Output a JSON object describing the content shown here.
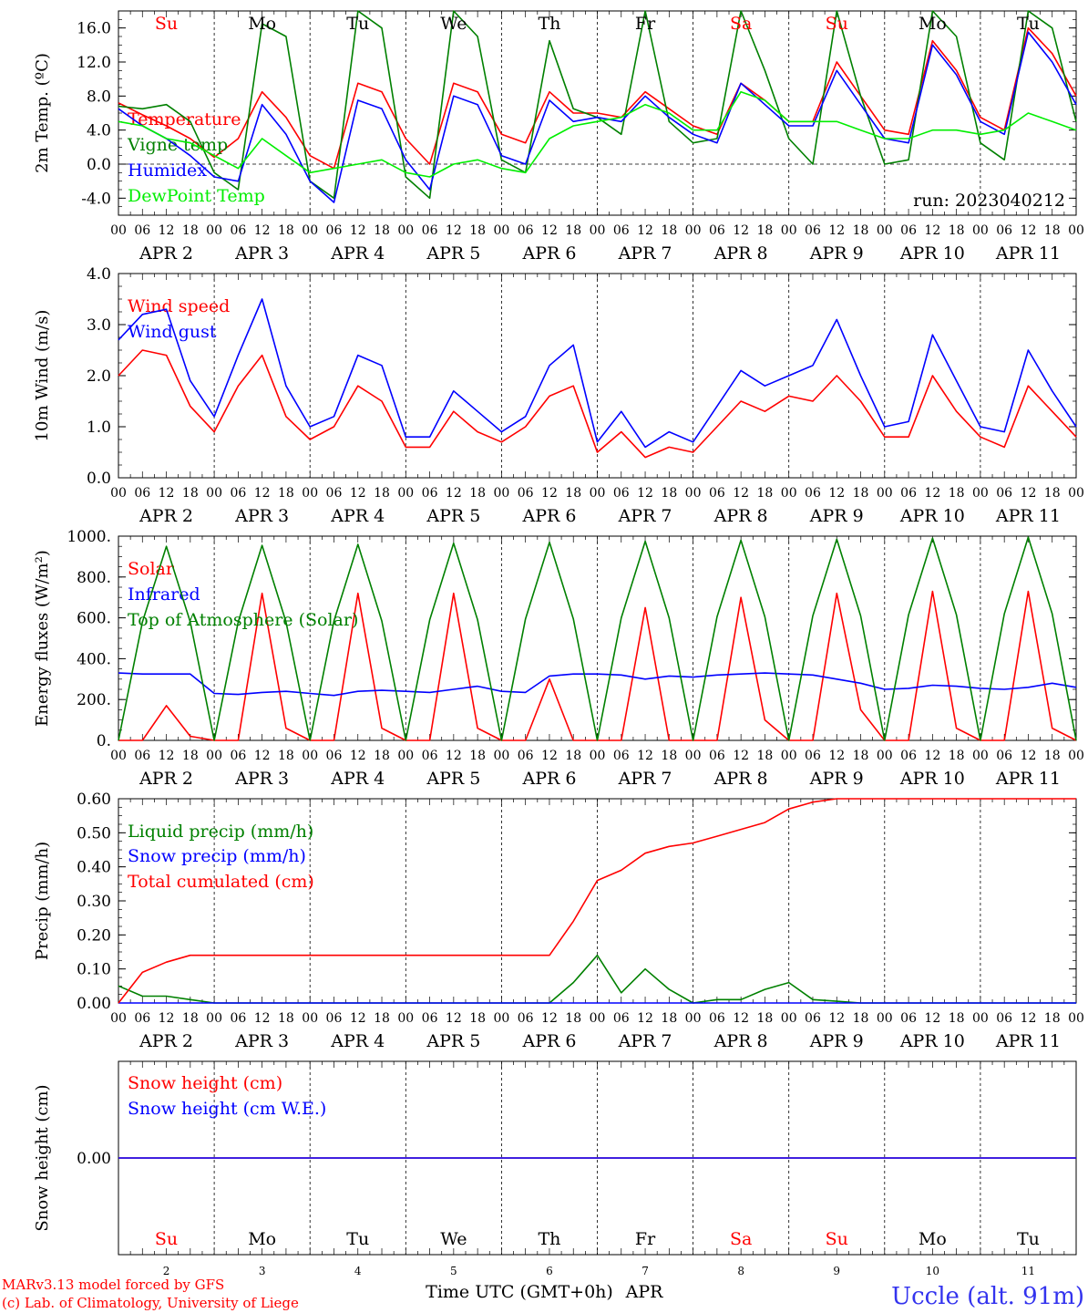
{
  "chart_data": [
    {
      "type": "line",
      "ylabel": "2m Temp. (ºC)",
      "ylim": [
        -6,
        18
      ],
      "yticks": [
        -4,
        0,
        4,
        8,
        12,
        16
      ],
      "ytick_labels": [
        "-4.0",
        "0.0",
        "4.0",
        "8.0",
        "12.0",
        "16.0"
      ],
      "zero_line": true,
      "run_label": "run: 2023040212",
      "top_day_labels": [
        "Su",
        "Mo",
        "Tu",
        "We",
        "Th",
        "Fr",
        "Sa",
        "Su",
        "Mo",
        "Tu"
      ],
      "x": [
        0,
        6,
        12,
        18,
        24,
        30,
        36,
        42,
        48,
        54,
        60,
        66,
        72,
        78,
        84,
        90,
        96,
        102,
        108,
        114,
        120,
        126,
        132,
        138,
        144,
        150,
        156,
        162,
        168,
        174,
        180,
        186,
        192,
        198,
        204,
        210,
        216,
        222,
        228,
        234,
        240
      ],
      "series": [
        {
          "name": "Temperature",
          "color": "#ff0000",
          "values": [
            7.2,
            5.8,
            4.5,
            3.0,
            0.8,
            3.0,
            8.5,
            5.5,
            1.0,
            -0.5,
            9.5,
            8.5,
            3.0,
            0.0,
            9.5,
            8.5,
            3.5,
            2.5,
            8.5,
            6.0,
            6.0,
            5.5,
            8.5,
            6.5,
            4.5,
            3.5,
            9.5,
            7.5,
            5.0,
            5.0,
            12.0,
            8.0,
            4.0,
            3.5,
            14.5,
            11.0,
            5.5,
            4.0,
            16.0,
            13.0,
            8.0
          ]
        },
        {
          "name": "Vigne temp",
          "color": "#008000",
          "values": [
            6.8,
            6.5,
            7.0,
            5.0,
            -1.0,
            -3.0,
            16.5,
            15.0,
            -2.0,
            -4.0,
            18.0,
            16.0,
            -1.5,
            -4.0,
            18.0,
            15.0,
            0.5,
            -1.0,
            14.5,
            6.5,
            5.5,
            3.5,
            18.0,
            5.0,
            2.5,
            3.0,
            18.0,
            11.0,
            3.0,
            0.0,
            18.0,
            8.0,
            0.0,
            0.5,
            18.0,
            15.0,
            2.5,
            0.5,
            18.0,
            16.0,
            5.0
          ]
        },
        {
          "name": "Humidex",
          "color": "#0000ff",
          "values": [
            6.5,
            4.5,
            3.0,
            1.0,
            -1.5,
            -2.0,
            7.0,
            3.5,
            -2.0,
            -4.5,
            7.5,
            6.5,
            0.5,
            -3.0,
            8.0,
            7.0,
            1.0,
            0.0,
            7.5,
            5.0,
            5.5,
            5.0,
            8.0,
            5.5,
            3.5,
            2.5,
            9.5,
            7.0,
            4.5,
            4.5,
            11.0,
            7.0,
            3.0,
            2.5,
            14.0,
            10.5,
            5.0,
            3.5,
            15.5,
            12.0,
            7.0
          ]
        },
        {
          "name": "DewPoint Temp",
          "color": "#00ee00",
          "values": [
            5.0,
            4.5,
            3.0,
            2.5,
            1.0,
            -0.5,
            3.0,
            1.0,
            -1.0,
            -0.5,
            0.0,
            0.5,
            -1.0,
            -1.5,
            0.0,
            0.5,
            -0.5,
            -1.0,
            3.0,
            4.5,
            5.0,
            5.5,
            7.0,
            6.0,
            4.0,
            4.0,
            8.5,
            7.5,
            5.0,
            5.0,
            5.0,
            4.0,
            3.0,
            3.0,
            4.0,
            4.0,
            3.5,
            4.0,
            6.0,
            5.0,
            4.0
          ]
        }
      ]
    },
    {
      "type": "line",
      "ylabel": "10m Wind (m/s)",
      "ylim": [
        0,
        4
      ],
      "yticks": [
        0,
        1,
        2,
        3,
        4
      ],
      "ytick_labels": [
        "0.0",
        "1.0",
        "2.0",
        "3.0",
        "4.0"
      ],
      "x": [
        0,
        6,
        12,
        18,
        24,
        30,
        36,
        42,
        48,
        54,
        60,
        66,
        72,
        78,
        84,
        90,
        96,
        102,
        108,
        114,
        120,
        126,
        132,
        138,
        144,
        150,
        156,
        162,
        168,
        174,
        180,
        186,
        192,
        198,
        204,
        210,
        216,
        222,
        228,
        234,
        240
      ],
      "series": [
        {
          "name": "Wind speed",
          "color": "#ff0000",
          "values": [
            2.0,
            2.5,
            2.4,
            1.4,
            0.9,
            1.8,
            2.4,
            1.2,
            0.75,
            1.0,
            1.8,
            1.5,
            0.6,
            0.6,
            1.3,
            0.9,
            0.7,
            1.0,
            1.6,
            1.8,
            0.5,
            0.9,
            0.4,
            0.6,
            0.5,
            1.0,
            1.5,
            1.3,
            1.6,
            1.5,
            2.0,
            1.5,
            0.8,
            0.8,
            2.0,
            1.3,
            0.8,
            0.6,
            1.8,
            1.3,
            0.8
          ]
        },
        {
          "name": "Wind gust",
          "color": "#0000ff",
          "values": [
            2.7,
            3.2,
            3.3,
            1.9,
            1.2,
            2.4,
            3.5,
            1.8,
            1.0,
            1.2,
            2.4,
            2.2,
            0.8,
            0.8,
            1.7,
            1.3,
            0.9,
            1.2,
            2.2,
            2.6,
            0.7,
            1.3,
            0.6,
            0.9,
            0.7,
            1.4,
            2.1,
            1.8,
            2.0,
            2.2,
            3.1,
            2.0,
            1.0,
            1.1,
            2.8,
            1.9,
            1.0,
            0.9,
            2.5,
            1.7,
            1.0
          ]
        }
      ]
    },
    {
      "type": "line",
      "ylabel": "Energy fluxes (W/m²)",
      "ylim": [
        0,
        1000
      ],
      "yticks": [
        0,
        200,
        400,
        600,
        800,
        1000
      ],
      "ytick_labels": [
        "0.",
        "200.",
        "400.",
        "600.",
        "800.",
        "1000."
      ],
      "x": [
        0,
        6,
        12,
        18,
        24,
        30,
        36,
        42,
        48,
        54,
        60,
        66,
        72,
        78,
        84,
        90,
        96,
        102,
        108,
        114,
        120,
        126,
        132,
        138,
        144,
        150,
        156,
        162,
        168,
        174,
        180,
        186,
        192,
        198,
        204,
        210,
        216,
        222,
        228,
        234,
        240
      ],
      "series": [
        {
          "name": "Solar",
          "color": "#ff0000",
          "values": [
            0,
            0,
            170,
            20,
            0,
            0,
            720,
            60,
            0,
            0,
            720,
            60,
            0,
            0,
            720,
            60,
            0,
            0,
            300,
            0,
            0,
            0,
            650,
            0,
            0,
            0,
            700,
            100,
            0,
            0,
            720,
            150,
            0,
            0,
            730,
            60,
            0,
            0,
            730,
            60,
            0
          ]
        },
        {
          "name": "Infrared",
          "color": "#0000ff",
          "values": [
            330,
            325,
            325,
            325,
            230,
            225,
            235,
            240,
            230,
            220,
            240,
            245,
            240,
            235,
            250,
            265,
            240,
            235,
            315,
            325,
            325,
            320,
            300,
            315,
            310,
            320,
            325,
            330,
            325,
            320,
            300,
            280,
            250,
            255,
            270,
            265,
            255,
            250,
            260,
            280,
            260
          ]
        },
        {
          "name": "Top of Atmosphere (Solar)",
          "color": "#008000",
          "values": [
            0,
            580,
            950,
            580,
            0,
            580,
            955,
            580,
            0,
            585,
            960,
            585,
            0,
            590,
            965,
            590,
            0,
            595,
            970,
            595,
            0,
            600,
            975,
            600,
            0,
            605,
            980,
            605,
            0,
            610,
            985,
            610,
            0,
            615,
            990,
            615,
            0,
            620,
            995,
            620,
            0
          ]
        }
      ]
    },
    {
      "type": "line",
      "ylabel": "Precip (mm/h)",
      "ylim": [
        0,
        0.6
      ],
      "yticks": [
        0,
        0.1,
        0.2,
        0.3,
        0.4,
        0.5,
        0.6
      ],
      "ytick_labels": [
        "0.00",
        "0.10",
        "0.20",
        "0.30",
        "0.40",
        "0.50",
        "0.60"
      ],
      "x": [
        0,
        6,
        12,
        18,
        24,
        30,
        36,
        42,
        48,
        54,
        60,
        66,
        72,
        78,
        84,
        90,
        96,
        102,
        108,
        114,
        120,
        126,
        132,
        138,
        144,
        150,
        156,
        162,
        168,
        174,
        180,
        186,
        192,
        198,
        204,
        210,
        216,
        222,
        228,
        234,
        240
      ],
      "series": [
        {
          "name": "Liquid precip (mm/h)",
          "color": "#008000",
          "values": [
            0.05,
            0.02,
            0.02,
            0.01,
            0,
            0,
            0,
            0,
            0,
            0,
            0,
            0,
            0,
            0,
            0,
            0,
            0,
            0,
            0,
            0.06,
            0.14,
            0.03,
            0.1,
            0.04,
            0,
            0.01,
            0.01,
            0.04,
            0.06,
            0.01,
            0.005,
            0,
            0,
            0,
            0,
            0,
            0,
            0,
            0,
            0,
            0
          ]
        },
        {
          "name": "Snow precip (mm/h)",
          "color": "#0000ff",
          "values": [
            0,
            0,
            0,
            0,
            0,
            0,
            0,
            0,
            0,
            0,
            0,
            0,
            0,
            0,
            0,
            0,
            0,
            0,
            0,
            0,
            0,
            0,
            0,
            0,
            0,
            0,
            0,
            0,
            0,
            0,
            0,
            0,
            0,
            0,
            0,
            0,
            0,
            0,
            0,
            0,
            0
          ]
        },
        {
          "name": "Total cumulated (cm)",
          "color": "#ff0000",
          "values": [
            0.0,
            0.09,
            0.12,
            0.14,
            0.14,
            0.14,
            0.14,
            0.14,
            0.14,
            0.14,
            0.14,
            0.14,
            0.14,
            0.14,
            0.14,
            0.14,
            0.14,
            0.14,
            0.14,
            0.24,
            0.36,
            0.39,
            0.44,
            0.46,
            0.47,
            0.49,
            0.51,
            0.53,
            0.57,
            0.59,
            0.6,
            0.6,
            0.6,
            0.6,
            0.6,
            0.6,
            0.6,
            0.6,
            0.6,
            0.6,
            0.6
          ]
        }
      ]
    },
    {
      "type": "line",
      "ylabel": "Snow height (cm)",
      "ylim": [
        -1,
        1
      ],
      "yticks": [
        0
      ],
      "ytick_labels": [
        "0.00"
      ],
      "bottom_day_labels": [
        "Su",
        "Mo",
        "Tu",
        "We",
        "Th",
        "Fr",
        "Sa",
        "Su",
        "Mo",
        "Tu"
      ],
      "bottom_day_numbers": [
        "2",
        "3",
        "4",
        "5",
        "6",
        "7",
        "8",
        "9",
        "10",
        "11"
      ],
      "xlabel": "Time UTC (GMT+0h)",
      "month_label": "APR",
      "x": [
        0,
        240
      ],
      "series": [
        {
          "name": "Snow height (cm)",
          "color": "#ff0000",
          "values": [
            0,
            0
          ]
        },
        {
          "name": "Snow height (cm W.E.)",
          "color": "#0000ff",
          "values": [
            0,
            0
          ]
        }
      ]
    }
  ],
  "x_hour_labels": [
    "00",
    "06",
    "12",
    "18"
  ],
  "x_date_labels": [
    "APR  2",
    "APR  3",
    "APR  4",
    "APR  5",
    "APR  6",
    "APR  7",
    "APR  8",
    "APR  9",
    "APR 10",
    "APR 11"
  ],
  "weekend_color": "#ff0000",
  "weekday_color": "#000000",
  "weekend_days": [
    0,
    6,
    7
  ],
  "footer": {
    "model_line": "MARv3.13 model forced by GFS",
    "credit_line": "(c) Lab. of Climatology, University of Liege",
    "station": "Uccle (alt. 91m)"
  }
}
